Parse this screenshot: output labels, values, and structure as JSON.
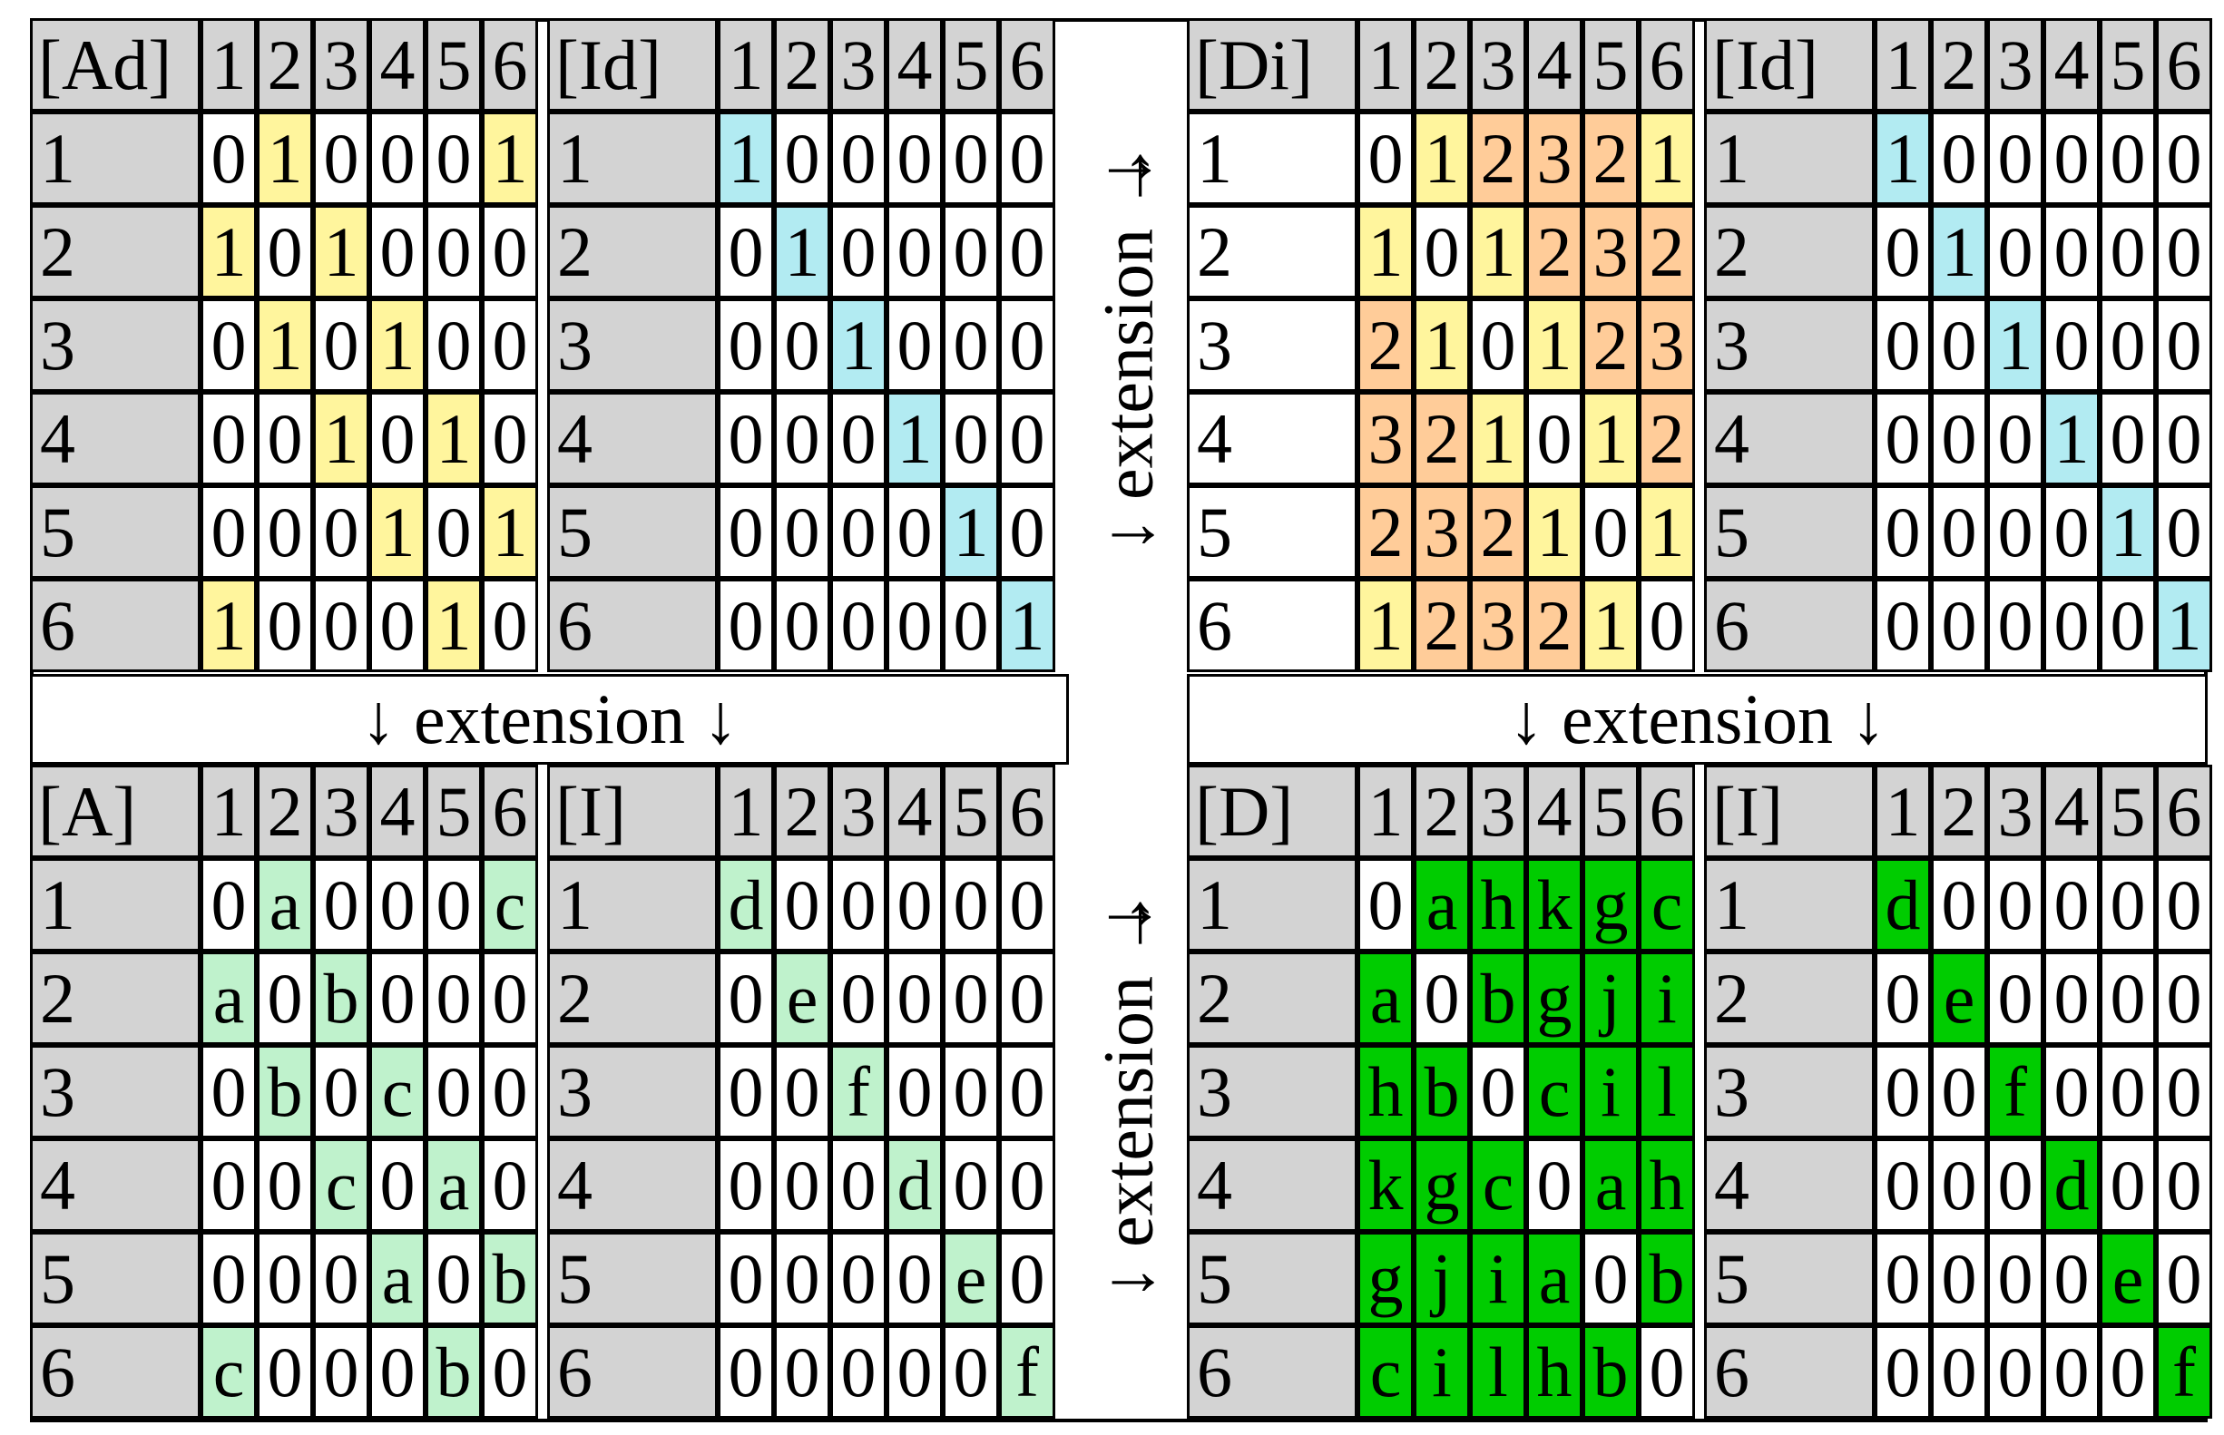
{
  "colors": {
    "header_gray": "#d3d3d3",
    "adjacency_yellow": "#fff59d",
    "identity_cyan": "#b2ebf2",
    "distance_orange": "#ffcc99",
    "symbolic_light_green": "#bff2cc",
    "symbolic_green": "#00cc00",
    "white": "#ffffff"
  },
  "column_headers": [
    "1",
    "2",
    "3",
    "4",
    "5",
    "6"
  ],
  "row_headers": [
    "1",
    "2",
    "3",
    "4",
    "5",
    "6"
  ],
  "labels": {
    "extension_down": "↓ extension ↓",
    "extension_side": "↓ extension →",
    "arrow_right": "→"
  },
  "matrices": [
    {
      "id": "Ad",
      "title": "[Ad]",
      "highlight": "yellow",
      "rows": [
        [
          "0",
          "1",
          "0",
          "0",
          "0",
          "1"
        ],
        [
          "1",
          "0",
          "1",
          "0",
          "0",
          "0"
        ],
        [
          "0",
          "1",
          "0",
          "1",
          "0",
          "0"
        ],
        [
          "0",
          "0",
          "1",
          "0",
          "1",
          "0"
        ],
        [
          "0",
          "0",
          "0",
          "1",
          "0",
          "1"
        ],
        [
          "1",
          "0",
          "0",
          "0",
          "1",
          "0"
        ]
      ]
    },
    {
      "id": "Id_top_left",
      "title": "[Id]",
      "highlight": "cyan",
      "rows": [
        [
          "1",
          "0",
          "0",
          "0",
          "0",
          "0"
        ],
        [
          "0",
          "1",
          "0",
          "0",
          "0",
          "0"
        ],
        [
          "0",
          "0",
          "1",
          "0",
          "0",
          "0"
        ],
        [
          "0",
          "0",
          "0",
          "1",
          "0",
          "0"
        ],
        [
          "0",
          "0",
          "0",
          "0",
          "1",
          "0"
        ],
        [
          "0",
          "0",
          "0",
          "0",
          "0",
          "1"
        ]
      ]
    },
    {
      "id": "Di",
      "title": "[Di]",
      "highlight": "distance",
      "rows": [
        [
          "0",
          "1",
          "2",
          "3",
          "2",
          "1"
        ],
        [
          "1",
          "0",
          "1",
          "2",
          "3",
          "2"
        ],
        [
          "2",
          "1",
          "0",
          "1",
          "2",
          "3"
        ],
        [
          "3",
          "2",
          "1",
          "0",
          "1",
          "2"
        ],
        [
          "2",
          "3",
          "2",
          "1",
          "0",
          "1"
        ],
        [
          "1",
          "2",
          "3",
          "2",
          "1",
          "0"
        ]
      ]
    },
    {
      "id": "Id_top_right",
      "title": "[Id]",
      "highlight": "cyan",
      "rows": [
        [
          "1",
          "0",
          "0",
          "0",
          "0",
          "0"
        ],
        [
          "0",
          "1",
          "0",
          "0",
          "0",
          "0"
        ],
        [
          "0",
          "0",
          "1",
          "0",
          "0",
          "0"
        ],
        [
          "0",
          "0",
          "0",
          "1",
          "0",
          "0"
        ],
        [
          "0",
          "0",
          "0",
          "0",
          "1",
          "0"
        ],
        [
          "0",
          "0",
          "0",
          "0",
          "0",
          "1"
        ]
      ]
    },
    {
      "id": "A",
      "title": "[A]",
      "highlight": "lightgreen",
      "rows": [
        [
          "0",
          "a",
          "0",
          "0",
          "0",
          "c"
        ],
        [
          "a",
          "0",
          "b",
          "0",
          "0",
          "0"
        ],
        [
          "0",
          "b",
          "0",
          "c",
          "0",
          "0"
        ],
        [
          "0",
          "0",
          "c",
          "0",
          "a",
          "0"
        ],
        [
          "0",
          "0",
          "0",
          "a",
          "0",
          "b"
        ],
        [
          "c",
          "0",
          "0",
          "0",
          "b",
          "0"
        ]
      ]
    },
    {
      "id": "I_bottom_left",
      "title": "[I]",
      "highlight": "lightgreen",
      "rows": [
        [
          "d",
          "0",
          "0",
          "0",
          "0",
          "0"
        ],
        [
          "0",
          "e",
          "0",
          "0",
          "0",
          "0"
        ],
        [
          "0",
          "0",
          "f",
          "0",
          "0",
          "0"
        ],
        [
          "0",
          "0",
          "0",
          "d",
          "0",
          "0"
        ],
        [
          "0",
          "0",
          "0",
          "0",
          "e",
          "0"
        ],
        [
          "0",
          "0",
          "0",
          "0",
          "0",
          "f"
        ]
      ]
    },
    {
      "id": "D",
      "title": "[D]",
      "highlight": "green",
      "rows": [
        [
          "0",
          "a",
          "h",
          "k",
          "g",
          "c"
        ],
        [
          "a",
          "0",
          "b",
          "g",
          "j",
          "i"
        ],
        [
          "h",
          "b",
          "0",
          "c",
          "i",
          "l"
        ],
        [
          "k",
          "g",
          "c",
          "0",
          "a",
          "h"
        ],
        [
          "g",
          "j",
          "i",
          "a",
          "0",
          "b"
        ],
        [
          "c",
          "i",
          "l",
          "h",
          "b",
          "0"
        ]
      ]
    },
    {
      "id": "I_bottom_right",
      "title": "[I]",
      "highlight": "green",
      "rows": [
        [
          "d",
          "0",
          "0",
          "0",
          "0",
          "0"
        ],
        [
          "0",
          "e",
          "0",
          "0",
          "0",
          "0"
        ],
        [
          "0",
          "0",
          "f",
          "0",
          "0",
          "0"
        ],
        [
          "0",
          "0",
          "0",
          "d",
          "0",
          "0"
        ],
        [
          "0",
          "0",
          "0",
          "0",
          "e",
          "0"
        ],
        [
          "0",
          "0",
          "0",
          "0",
          "0",
          "f"
        ]
      ]
    }
  ]
}
